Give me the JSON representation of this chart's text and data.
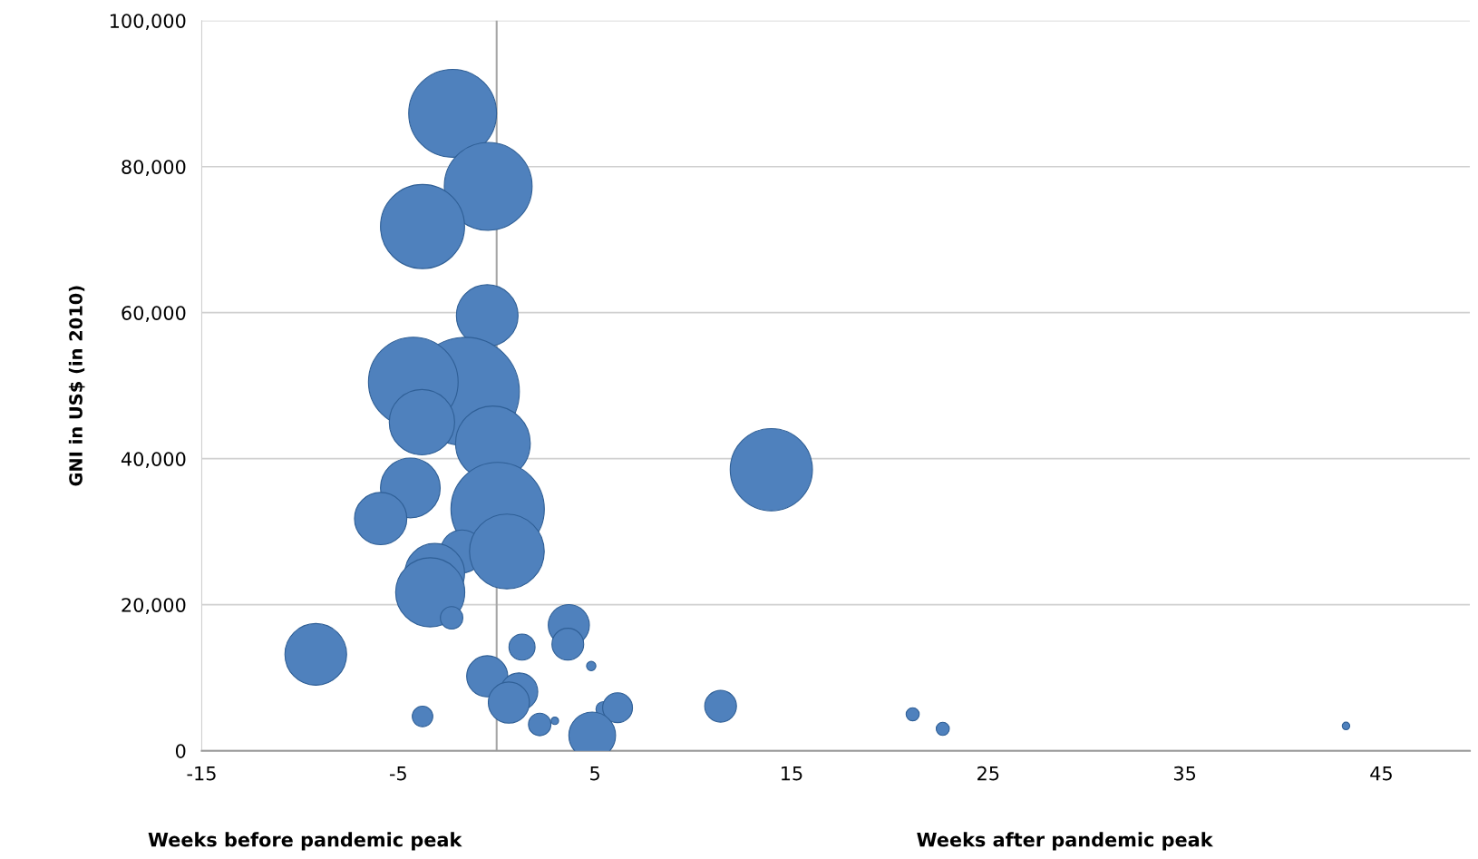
{
  "chart_data": {
    "type": "bubble",
    "ylabel": "GNI in US$ (in 2010)",
    "annotations": [
      "Weeks before pandemic peak",
      "Weeks after pandemic peak"
    ],
    "x": [
      -2.24,
      -0.43,
      -3.77,
      -0.48,
      -1.6,
      -4.24,
      -3.8,
      -0.19,
      13.97,
      -4.39,
      -5.9,
      0.05,
      -1.76,
      0.52,
      -3.15,
      -3.38,
      -2.29,
      3.67,
      3.62,
      1.29,
      4.81,
      -9.2,
      -0.48,
      1.14,
      0.62,
      5.43,
      6.15,
      11.39,
      -3.77,
      2.19,
      2.96,
      4.86,
      21.16,
      22.69,
      43.2
    ],
    "values": [
      87300,
      77300,
      71800,
      59600,
      49200,
      50500,
      45000,
      42100,
      38500,
      36000,
      31800,
      33100,
      27300,
      27300,
      24300,
      21700,
      18200,
      17200,
      14600,
      14200,
      11600,
      13200,
      10200,
      8100,
      6600,
      5700,
      5900,
      6100,
      4700,
      3600,
      4100,
      2100,
      5000,
      3000,
      3400
    ],
    "sizes": [
      0.657,
      0.657,
      0.602,
      0.324,
      1,
      0.685,
      0.364,
      0.476,
      0.576,
      0.304,
      0.233,
      0.743,
      0.157,
      0.476,
      0.304,
      0.407,
      0.043,
      0.144,
      0.086,
      0.058,
      0.0074,
      0.324,
      0.144,
      0.119,
      0.144,
      0.019,
      0.076,
      0.086,
      0.036,
      0.043,
      0.0048,
      0.186,
      0.0146,
      0.0146,
      0.0048
    ],
    "color": "#4f81bd",
    "xlim": [
      -15,
      49.5
    ],
    "xticks": [
      -15,
      -5,
      5,
      15,
      25,
      35,
      45
    ],
    "ylim": [
      0,
      100000
    ],
    "yticks": [
      0,
      {
        "value": 20000,
        "label": "20,000"
      },
      {
        "value": 40000,
        "label": "40,000"
      },
      {
        "value": 60000,
        "label": "60,000"
      },
      {
        "value": 80000,
        "label": "80,000"
      },
      {
        "value": 100000,
        "label": "100,000"
      }
    ],
    "ref_lines": [
      {
        "axis": "x",
        "value": 0,
        "color": "#a6a6a6"
      }
    ],
    "grid": "y"
  }
}
